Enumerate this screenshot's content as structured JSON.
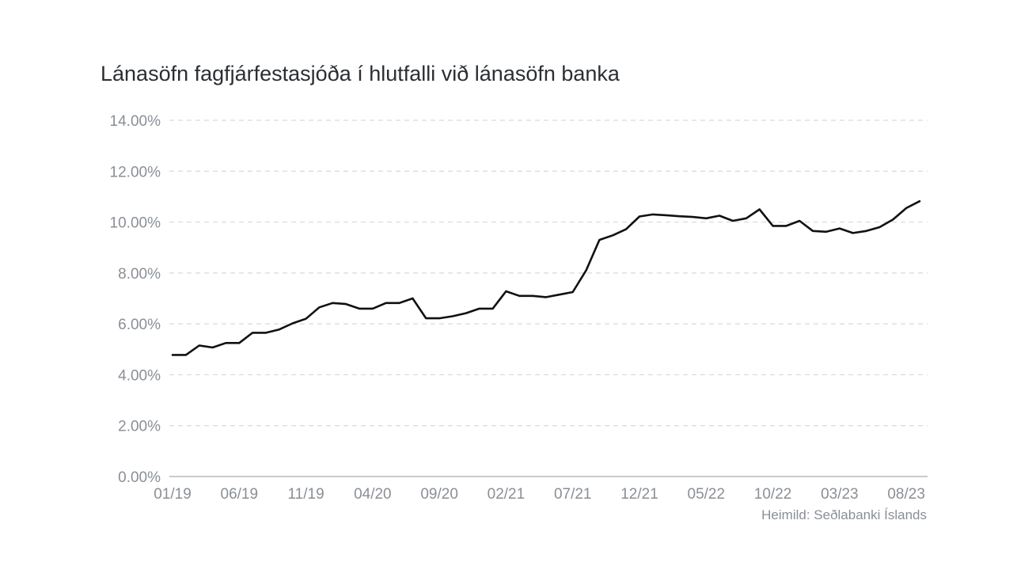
{
  "chart_data": {
    "type": "line",
    "title": "Lánasöfn fagfjárfestasjóða í hlutfalli við lánasöfn banka",
    "source": "Heimild: Seðlabanki Íslands",
    "xlabel": "",
    "ylabel": "",
    "ylim": [
      0,
      14
    ],
    "y_ticks": [
      "0.00%",
      "2.00%",
      "4.00%",
      "6.00%",
      "8.00%",
      "10.00%",
      "12.00%",
      "14.00%"
    ],
    "y_tick_values": [
      0,
      2,
      4,
      6,
      8,
      10,
      12,
      14
    ],
    "x_ticks": [
      "01/19",
      "06/19",
      "11/19",
      "04/20",
      "09/20",
      "02/21",
      "07/21",
      "12/21",
      "05/22",
      "10/22",
      "03/23",
      "08/23"
    ],
    "x_tick_index": [
      0,
      5,
      10,
      15,
      20,
      25,
      30,
      35,
      40,
      45,
      50,
      55
    ],
    "grid": true,
    "line_color": "#111111",
    "grid_color": "#d9d9d9",
    "series": [
      {
        "x": [
          "01/19",
          "02/19",
          "03/19",
          "04/19",
          "05/19",
          "06/19",
          "07/19",
          "08/19",
          "09/19",
          "10/19",
          "11/19",
          "12/19",
          "01/20",
          "02/20",
          "03/20",
          "04/20",
          "05/20",
          "06/20",
          "07/20",
          "08/20",
          "09/20",
          "10/20",
          "11/20",
          "12/20",
          "01/21",
          "02/21",
          "03/21",
          "04/21",
          "05/21",
          "06/21",
          "07/21",
          "08/21",
          "09/21",
          "10/21",
          "11/21",
          "12/21",
          "01/22",
          "02/22",
          "03/22",
          "04/22",
          "05/22",
          "06/22",
          "07/22",
          "08/22",
          "09/22",
          "10/22",
          "11/22",
          "12/22",
          "01/23",
          "02/23",
          "03/23",
          "04/23",
          "05/23",
          "06/23",
          "07/23",
          "08/23",
          "09/23"
        ],
        "values": [
          4.78,
          4.78,
          5.15,
          5.07,
          5.25,
          5.25,
          5.65,
          5.65,
          5.78,
          6.02,
          6.2,
          6.65,
          6.82,
          6.78,
          6.6,
          6.6,
          6.82,
          6.82,
          7.0,
          6.22,
          6.22,
          6.3,
          6.42,
          6.6,
          6.6,
          7.28,
          7.1,
          7.1,
          7.05,
          7.15,
          7.25,
          8.1,
          9.3,
          9.48,
          9.72,
          10.22,
          10.3,
          10.27,
          10.23,
          10.2,
          10.15,
          10.25,
          10.05,
          10.15,
          10.5,
          9.85,
          9.85,
          10.05,
          9.65,
          9.62,
          9.75,
          9.57,
          9.65,
          9.8,
          10.1,
          10.55,
          10.82
        ]
      }
    ]
  }
}
